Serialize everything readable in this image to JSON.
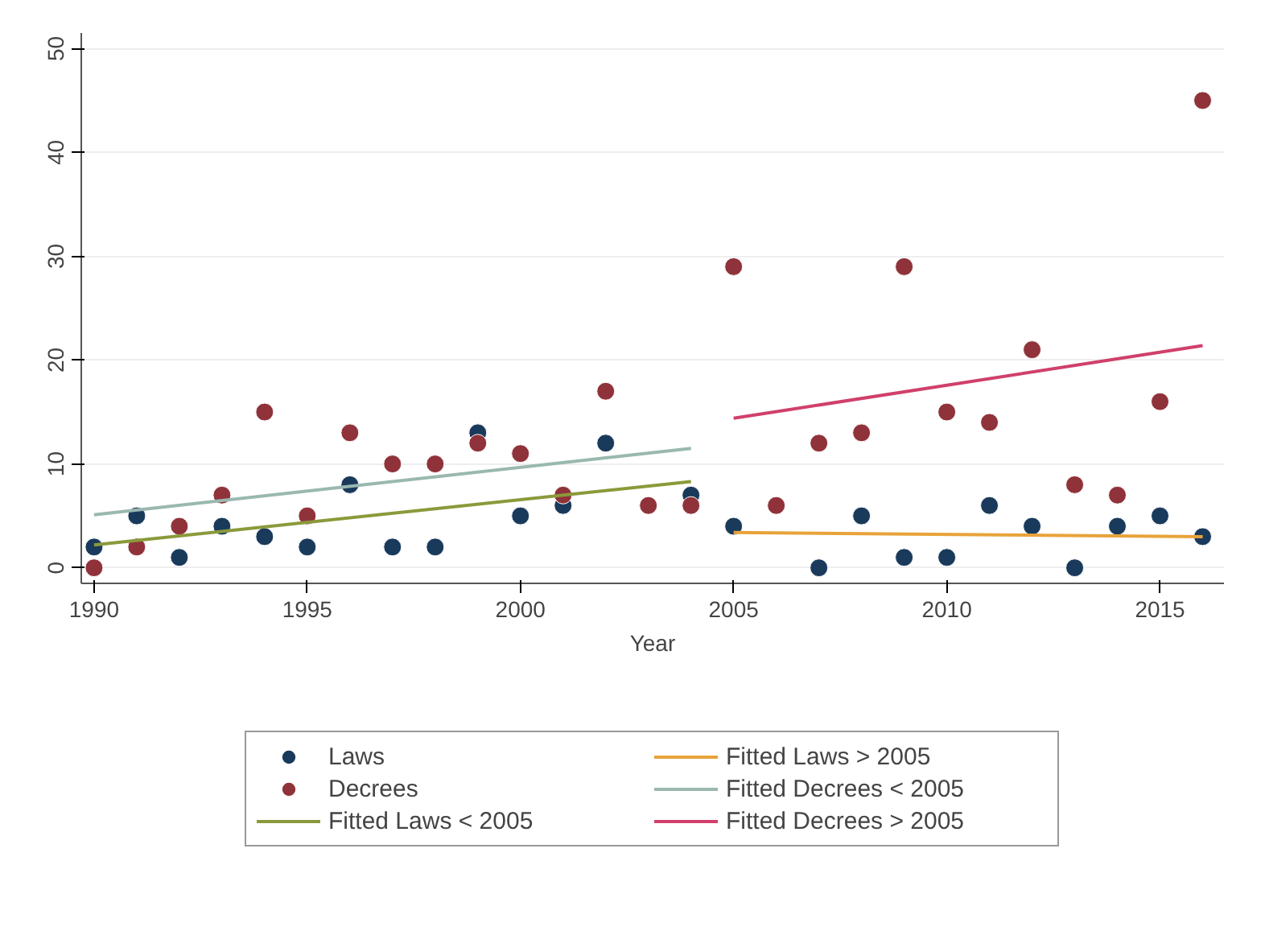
{
  "chart_data": {
    "type": "scatter",
    "xlabel": "Year",
    "x": [
      1990,
      1991,
      1992,
      1993,
      1994,
      1995,
      1996,
      1997,
      1998,
      1999,
      2000,
      2001,
      2002,
      2003,
      2004,
      2005,
      2006,
      2007,
      2008,
      2009,
      2010,
      2011,
      2012,
      2013,
      2014,
      2015,
      2016
    ],
    "series": [
      {
        "name": "Laws",
        "color": "#1a3a5c",
        "marker": "circle",
        "values": [
          2,
          5,
          1,
          4,
          3,
          2,
          8,
          2,
          2,
          13,
          5,
          6,
          12,
          null,
          7,
          4,
          null,
          0,
          5,
          1,
          1,
          6,
          4,
          0,
          4,
          5,
          3
        ]
      },
      {
        "name": "Decrees",
        "color": "#90323a",
        "marker": "circle",
        "values": [
          0,
          2,
          4,
          7,
          15,
          5,
          13,
          10,
          10,
          12,
          11,
          7,
          17,
          6,
          6,
          29,
          6,
          12,
          13,
          29,
          15,
          14,
          21,
          8,
          7,
          16,
          45
        ]
      },
      {
        "name": "Fitted Laws < 2005",
        "type": "line",
        "color": "#8a9a3a",
        "x": [
          1990,
          2004
        ],
        "values": [
          2.2,
          8.3
        ]
      },
      {
        "name": "Fitted Laws > 2005",
        "type": "line",
        "color": "#e8a33a",
        "x": [
          2005,
          2016
        ],
        "values": [
          3.4,
          3.0
        ]
      },
      {
        "name": "Fitted Decrees < 2005",
        "type": "line",
        "color": "#9ab8b0",
        "x": [
          1990,
          2004
        ],
        "values": [
          5.1,
          11.5
        ]
      },
      {
        "name": "Fitted Decrees > 2005",
        "type": "line",
        "color": "#d0406a",
        "x": [
          2005,
          2016
        ],
        "values": [
          14.4,
          21.4
        ]
      }
    ],
    "xlim": [
      1989.7,
      2016.5
    ],
    "xticks": [
      1990,
      1995,
      2000,
      2005,
      2010,
      2015
    ],
    "ylim": [
      -1.5,
      51.5
    ],
    "yticks": [
      0,
      10,
      20,
      30,
      40,
      50
    ],
    "grid": "y",
    "legend": "bottom"
  }
}
